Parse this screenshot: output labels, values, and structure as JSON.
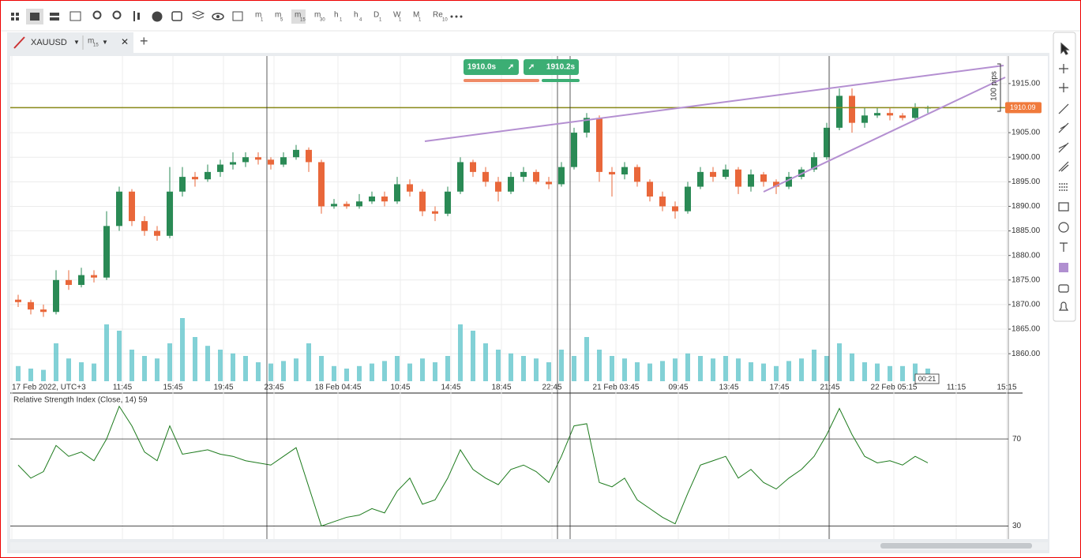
{
  "toolbar": {
    "timeframes": [
      {
        "label": "m",
        "sub": "1"
      },
      {
        "label": "m",
        "sub": "5"
      },
      {
        "label": "m",
        "sub": "15"
      },
      {
        "label": "m",
        "sub": "30"
      },
      {
        "label": "h",
        "sub": "1"
      },
      {
        "label": "h",
        "sub": "4"
      },
      {
        "label": "D",
        "sub": "1"
      },
      {
        "label": "W",
        "sub": "1"
      },
      {
        "label": "M",
        "sub": "1"
      },
      {
        "label": "Re",
        "sub": "10"
      }
    ]
  },
  "tab": {
    "symbol": "XAUUSD",
    "timeframe": {
      "label": "m",
      "sub": "15"
    }
  },
  "trade_buttons": {
    "sell": "1910.0s",
    "buy": "1910.2s"
  },
  "chart": {
    "type": "candlestick",
    "up_color": "#2a8a55",
    "down_color": "#e9673a",
    "volume_color": "#58c1c8",
    "candles": [
      [
        1871,
        1872,
        1869.5,
        1870.5
      ],
      [
        1870.5,
        1871,
        1868,
        1869
      ],
      [
        1869,
        1870,
        1867.5,
        1868.5
      ],
      [
        1868.5,
        1877,
        1868,
        1875
      ],
      [
        1875,
        1877,
        1873,
        1874
      ],
      [
        1874,
        1877.5,
        1873.5,
        1876
      ],
      [
        1876,
        1877,
        1874.5,
        1875.5
      ],
      [
        1875.5,
        1889,
        1875,
        1886
      ],
      [
        1886,
        1894,
        1885,
        1893
      ],
      [
        1893,
        1893.5,
        1886,
        1887
      ],
      [
        1887,
        1888,
        1884,
        1885
      ],
      [
        1885,
        1886,
        1883,
        1884
      ],
      [
        1884,
        1898,
        1883.5,
        1893
      ],
      [
        1893,
        1898,
        1892,
        1896
      ],
      [
        1896,
        1897,
        1894,
        1895.5
      ],
      [
        1895.5,
        1898.5,
        1895,
        1897
      ],
      [
        1897,
        1899.5,
        1896,
        1898.5
      ],
      [
        1898.5,
        1901,
        1897.5,
        1899
      ],
      [
        1899,
        1901,
        1898,
        1900
      ],
      [
        1900,
        1901,
        1898.5,
        1899.5
      ],
      [
        1899.5,
        1900,
        1897.5,
        1898.5
      ],
      [
        1898.5,
        1901,
        1898,
        1900
      ],
      [
        1900,
        1902.5,
        1899.5,
        1901.5
      ],
      [
        1901.5,
        1902,
        1897,
        1899
      ],
      [
        1899,
        1899.5,
        1888.5,
        1890
      ],
      [
        1890,
        1891.5,
        1889.5,
        1890.5
      ],
      [
        1890.5,
        1891,
        1889.5,
        1890
      ],
      [
        1890,
        1892.5,
        1889.5,
        1891
      ],
      [
        1891,
        1893,
        1890.5,
        1892
      ],
      [
        1892,
        1893,
        1890,
        1891
      ],
      [
        1891,
        1896,
        1890.5,
        1894.5
      ],
      [
        1894.5,
        1895.5,
        1892,
        1893
      ],
      [
        1893,
        1893.5,
        1888,
        1889
      ],
      [
        1889,
        1890,
        1887,
        1888.5
      ],
      [
        1888.5,
        1894,
        1888,
        1893
      ],
      [
        1893,
        1900,
        1892.5,
        1899
      ],
      [
        1899,
        1899.5,
        1896,
        1897
      ],
      [
        1897,
        1898,
        1894,
        1895
      ],
      [
        1895,
        1896,
        1891,
        1893
      ],
      [
        1893,
        1897,
        1892.5,
        1896
      ],
      [
        1896,
        1898,
        1895,
        1897
      ],
      [
        1897,
        1897.5,
        1894.5,
        1895
      ],
      [
        1895,
        1896,
        1893.5,
        1894.5
      ],
      [
        1894.5,
        1899,
        1894,
        1898
      ],
      [
        1898,
        1906,
        1897.5,
        1905
      ],
      [
        1905,
        1909,
        1904,
        1908
      ],
      [
        1908,
        1908.5,
        1895,
        1897
      ],
      [
        1897,
        1898,
        1892,
        1896.5
      ],
      [
        1896.5,
        1899,
        1895.5,
        1898
      ],
      [
        1898,
        1898.5,
        1894,
        1895
      ],
      [
        1895,
        1895.5,
        1891,
        1892
      ],
      [
        1892,
        1893,
        1889,
        1890
      ],
      [
        1890,
        1891,
        1887.5,
        1889
      ],
      [
        1889,
        1895,
        1888.5,
        1894
      ],
      [
        1894,
        1898,
        1893.5,
        1897
      ],
      [
        1897,
        1898,
        1895,
        1896
      ],
      [
        1896,
        1898.5,
        1895.5,
        1897.5
      ],
      [
        1897.5,
        1898,
        1892.5,
        1894
      ],
      [
        1894,
        1897.5,
        1893,
        1896.5
      ],
      [
        1896.5,
        1897,
        1894,
        1895
      ],
      [
        1895,
        1895.5,
        1892.5,
        1894
      ],
      [
        1894,
        1897,
        1893.5,
        1896
      ],
      [
        1896,
        1898,
        1895.5,
        1897.5
      ],
      [
        1897.5,
        1901,
        1897,
        1900
      ],
      [
        1900,
        1907,
        1899.5,
        1906
      ],
      [
        1906,
        1914,
        1905.5,
        1912.5
      ],
      [
        1912.5,
        1914,
        1905,
        1907
      ],
      [
        1907,
        1910,
        1906,
        1908.5
      ],
      [
        1908.5,
        1910,
        1908,
        1909
      ],
      [
        1909,
        1910,
        1907.5,
        1908.5
      ],
      [
        1908.5,
        1909,
        1907.5,
        1908
      ],
      [
        1908,
        1911,
        1907.5,
        1910
      ],
      [
        1910,
        1910.5,
        1909,
        1910.09
      ]
    ],
    "volume": [
      12,
      10,
      9,
      30,
      18,
      15,
      14,
      45,
      40,
      25,
      20,
      18,
      30,
      50,
      35,
      28,
      25,
      22,
      20,
      15,
      14,
      16,
      18,
      30,
      20,
      12,
      10,
      12,
      14,
      16,
      20,
      14,
      18,
      15,
      20,
      45,
      40,
      30,
      25,
      22,
      20,
      18,
      15,
      25,
      20,
      35,
      25,
      20,
      18,
      15,
      14,
      16,
      18,
      22,
      20,
      18,
      20,
      18,
      15,
      14,
      12,
      16,
      18,
      25,
      20,
      30,
      22,
      15,
      14,
      12,
      12,
      14,
      10
    ],
    "ylim": [
      1854.4,
      1920.6
    ],
    "yticks": [
      {
        "value": 1860,
        "label": "1860.00"
      },
      {
        "value": 1865,
        "label": "1865.00"
      },
      {
        "value": 1870,
        "label": "1870.00"
      },
      {
        "value": 1875,
        "label": "1875.00"
      },
      {
        "value": 1880,
        "label": "1880.00"
      },
      {
        "value": 1885,
        "label": "1885.00"
      },
      {
        "value": 1890,
        "label": "1890.00"
      },
      {
        "value": 1895,
        "label": "1895.00"
      },
      {
        "value": 1900,
        "label": "1900.00"
      },
      {
        "value": 1905,
        "label": "1905.00"
      },
      {
        "value": 1910,
        "label": "1910.00"
      },
      {
        "value": 1915,
        "label": "1915.00"
      }
    ],
    "x_labels": [
      "17 Feb 2022, UTC+3",
      "11:45",
      "15:45",
      "19:45",
      "23:45",
      "18 Feb 04:45",
      "10:45",
      "14:45",
      "18:45",
      "22:45",
      "21 Feb 03:45",
      "09:45",
      "13:45",
      "17:45",
      "21:45",
      "22 Feb 05:15",
      "11:15",
      "15:15"
    ],
    "grid": true,
    "last_price": 1910.09,
    "price_line_color": "#8a8a1a",
    "price_tag_color": "#f07a3c",
    "countdown": "00:21",
    "range_label": "100 pips"
  },
  "indicator": {
    "type": "line",
    "title": "Relative Strength Index (Close, 14) 59",
    "color": "#1c7a1c",
    "values": [
      58,
      52,
      55,
      67,
      62,
      64,
      60,
      70,
      85,
      76,
      64,
      60,
      76,
      63,
      64,
      65,
      63,
      62,
      60,
      59,
      58,
      62,
      66,
      48,
      30,
      32,
      34,
      35,
      38,
      36,
      46,
      52,
      40,
      42,
      52,
      65,
      56,
      52,
      49,
      56,
      58,
      55,
      50,
      62,
      76,
      77,
      50,
      48,
      52,
      42,
      38,
      34,
      31,
      45,
      58,
      60,
      62,
      52,
      56,
      50,
      47,
      52,
      56,
      62,
      72,
      84,
      72,
      62,
      59,
      60,
      58,
      62,
      59
    ],
    "ylim": [
      24,
      90
    ],
    "yticks": [
      30,
      70
    ]
  }
}
